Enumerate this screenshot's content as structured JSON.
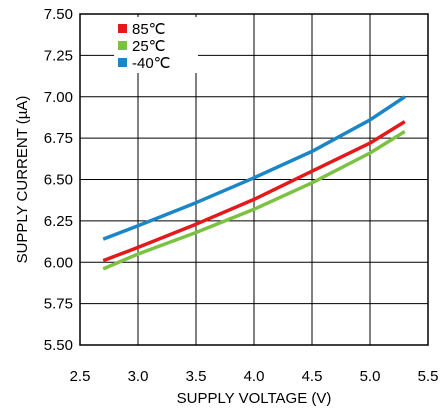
{
  "chart_data": {
    "type": "line",
    "title": "",
    "xlabel": "SUPPLY VOLTAGE (V)",
    "ylabel": "SUPPLY CURRENT (µA)",
    "xlim": [
      2.5,
      5.5
    ],
    "ylim": [
      5.5,
      7.5
    ],
    "x_ticks": [
      "2.5",
      "3.0",
      "3.5",
      "4.0",
      "4.5",
      "5.0",
      "5.5"
    ],
    "y_ticks": [
      "5.50",
      "5.75",
      "6.00",
      "6.25",
      "6.50",
      "6.75",
      "7.00",
      "7.25",
      "7.50"
    ],
    "grid": true,
    "legend_position": "top-left",
    "series": [
      {
        "name": "85℃",
        "color": "#e3191b",
        "x": [
          2.7,
          3.0,
          3.5,
          4.0,
          4.5,
          5.0,
          5.3
        ],
        "y": [
          6.01,
          6.09,
          6.23,
          6.38,
          6.55,
          6.72,
          6.85
        ]
      },
      {
        "name": "25℃",
        "color": "#7cc242",
        "x": [
          2.7,
          3.0,
          3.5,
          4.0,
          4.5,
          5.0,
          5.3
        ],
        "y": [
          5.96,
          6.05,
          6.18,
          6.32,
          6.48,
          6.66,
          6.79
        ]
      },
      {
        "name": "-40℃",
        "color": "#1a86c7",
        "x": [
          2.7,
          3.0,
          3.5,
          4.0,
          4.5,
          5.0,
          5.3
        ],
        "y": [
          6.14,
          6.22,
          6.36,
          6.51,
          6.67,
          6.86,
          7.0
        ]
      }
    ]
  }
}
